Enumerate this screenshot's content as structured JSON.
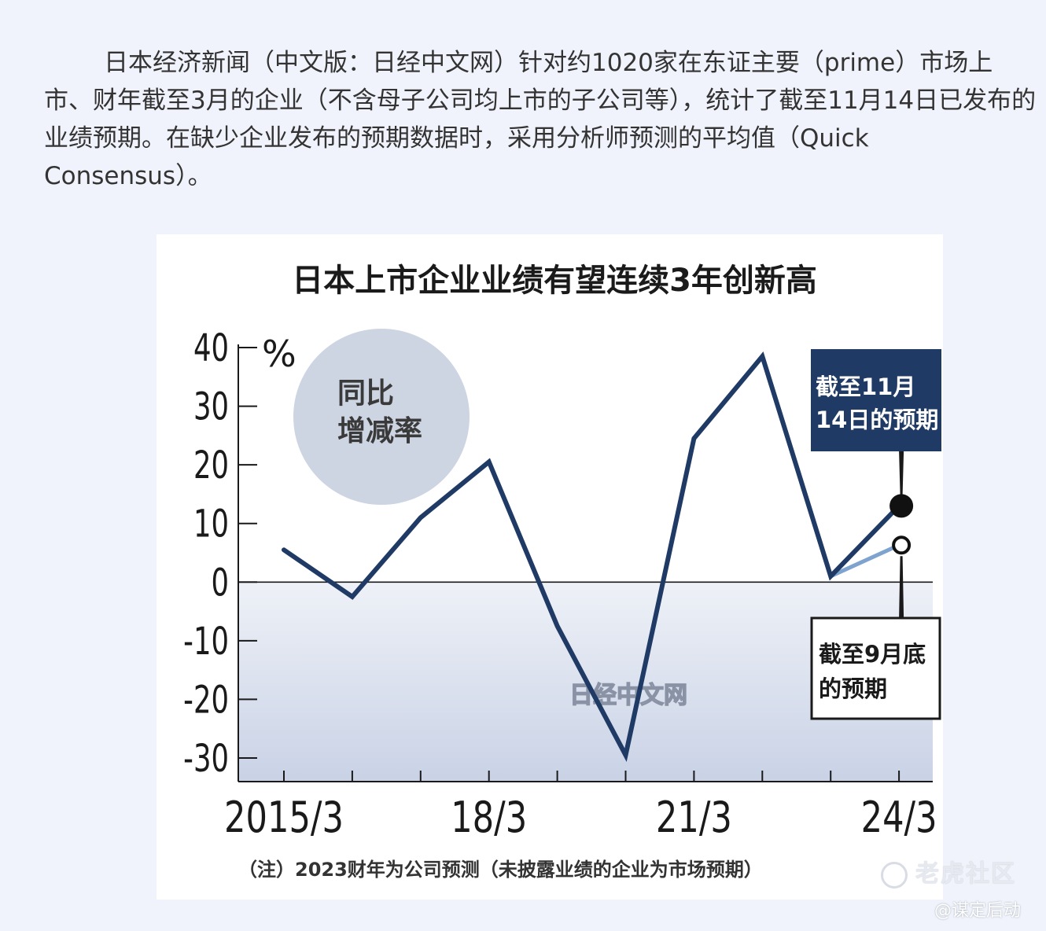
{
  "article": {
    "text": "日本经济新闻（中文版：日经中文网）针对约1020家在东证主要（prime）市场上市、财年截至3月的企业（不含母子公司均上市的子公司等），统计了截至11月14日已发布的业绩预期。在缺少企业发布的预期数据时，采用分析师预测的平均值（Quick Consensus）。"
  },
  "chart_data": {
    "type": "line",
    "title": "日本上市企业业绩有望连续3年创新高",
    "ylabel": "%",
    "ylim": [
      -30,
      40
    ],
    "yticks": [
      "40",
      "30",
      "20",
      "10",
      "0",
      "-10",
      "-20",
      "-30"
    ],
    "ytick_values": [
      40,
      30,
      20,
      10,
      0,
      -10,
      -20,
      -30
    ],
    "xtick_labels": [
      "2015/3",
      "18/3",
      "21/3",
      "24/3"
    ],
    "xtick_label_index": [
      0,
      3,
      6,
      9
    ],
    "x": [
      "2015/3",
      "2016/3",
      "2017/3",
      "2018/3",
      "2019/3",
      "2020/3",
      "2021/3",
      "2022/3",
      "2023/3",
      "2024/3"
    ],
    "series": [
      {
        "values": [
          5.5,
          -2.5,
          11,
          20.5,
          -7.5,
          -29.5,
          24.5,
          38.5,
          1,
          13
        ],
        "color": "#1f3a64"
      },
      {
        "values": [
          null,
          null,
          null,
          null,
          null,
          null,
          null,
          null,
          1,
          6.3
        ],
        "color": "#7fa3cf"
      }
    ],
    "bubble": {
      "line1": "同比",
      "line2": "增减率"
    },
    "callout_nov": {
      "line1": "截至11月",
      "line2": "14日的预期"
    },
    "callout_sep": {
      "line1": "截至9月底",
      "line2": "的预期"
    },
    "watermark": "日经中文网",
    "note": "（注）2023财年为公司预测（未披露业绩的企业为市场预期）",
    "colors": {
      "line": "#1f3a64",
      "line_light": "#7fa3cf",
      "negative_band_top": "#eef1f7",
      "negative_band_bottom": "#c9d2e6",
      "bubble": "#cdd4e2",
      "callout_bg": "#1f3a64"
    }
  },
  "watermarks": {
    "brand": "老虎社区",
    "user": "@谋定后动"
  }
}
